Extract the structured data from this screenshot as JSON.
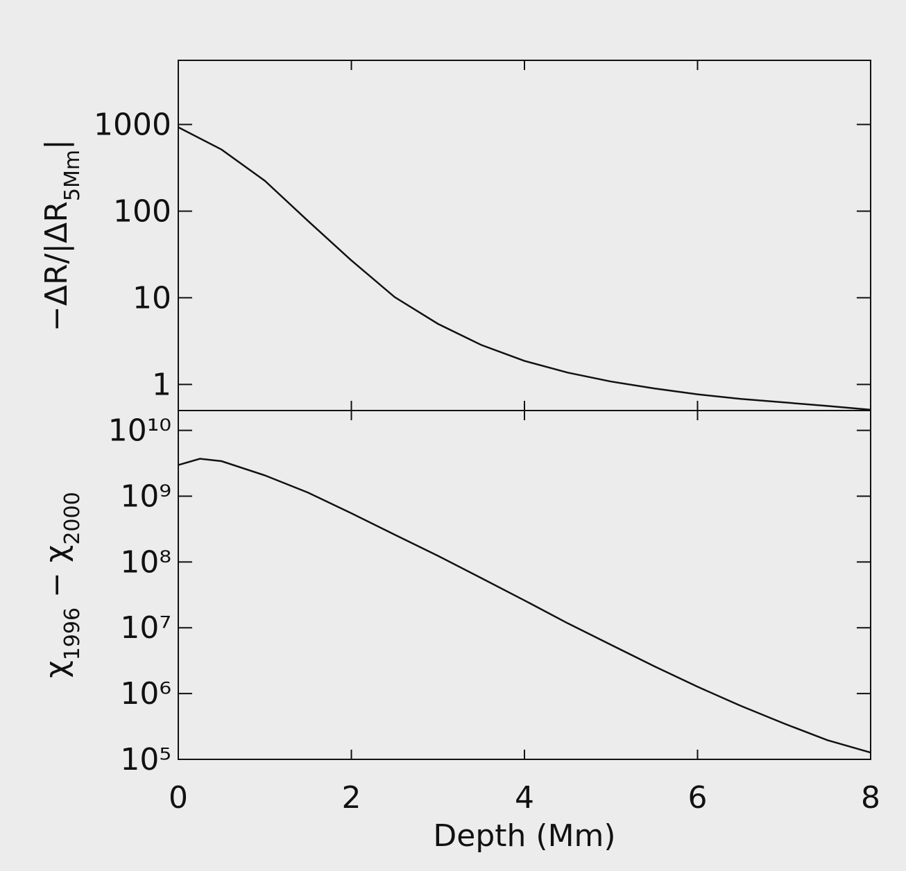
{
  "chart_data": [
    {
      "type": "line",
      "ylabel_parts": [
        {
          "text": "−ΔR/|ΔR"
        },
        {
          "text": "5Mm",
          "sub": true
        },
        {
          "text": "|"
        }
      ],
      "x": [
        0,
        0.5,
        1,
        1.5,
        2,
        2.5,
        3,
        3.5,
        4,
        4.5,
        5,
        5.5,
        6,
        6.5,
        7,
        7.5,
        8
      ],
      "values": [
        930,
        513,
        224,
        77,
        27,
        10.2,
        5.0,
        2.86,
        1.87,
        1.37,
        1.08,
        0.9,
        0.77,
        0.68,
        0.62,
        0.565,
        0.51
      ],
      "color": "#111111",
      "log_y": true,
      "xlim": [
        0,
        8
      ],
      "xticks": [
        0,
        2,
        4,
        6,
        8
      ],
      "ylim": [
        0.5,
        5500
      ],
      "yticks": [
        1,
        10,
        100,
        1000
      ]
    },
    {
      "type": "line",
      "ylabel_parts": [
        {
          "text": "χ"
        },
        {
          "text": "1996",
          "sub": true
        },
        {
          "text": " − χ"
        },
        {
          "text": "2000",
          "sub": true
        }
      ],
      "xlabel": "Depth (Mm)",
      "x": [
        0,
        0.25,
        0.5,
        1,
        1.5,
        2,
        2.5,
        3,
        3.5,
        4,
        4.5,
        5,
        5.5,
        6,
        6.5,
        7,
        7.5,
        8
      ],
      "values": [
        2970000000,
        3700000000,
        3400000000,
        2070000000,
        1130000000,
        550000000,
        260000000,
        124000000,
        57000000,
        26000000,
        11700000,
        5500000,
        2600000,
        1270000,
        650000,
        350000,
        196000,
        127000
      ],
      "color": "#111111",
      "log_y": true,
      "xlim": [
        0,
        8
      ],
      "xticks": [
        0,
        2,
        4,
        6,
        8
      ],
      "ylim": [
        100000,
        20000000000
      ],
      "yticks": [
        {
          "value": 100000,
          "label": "10⁵"
        },
        {
          "value": 1000000,
          "label": "10⁶"
        },
        {
          "value": 10000000,
          "label": "10⁷"
        },
        {
          "value": 100000000,
          "label": "10⁸"
        },
        {
          "value": 1000000000,
          "label": "10⁹"
        },
        {
          "value": 10000000000,
          "label": "10¹⁰"
        }
      ]
    }
  ]
}
